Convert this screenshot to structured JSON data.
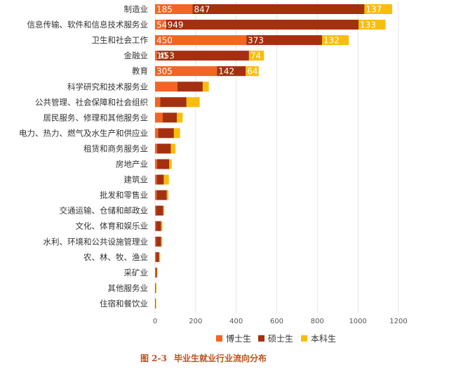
{
  "chart_data": {
    "type": "bar",
    "orientation": "horizontal",
    "stacked": true,
    "categories": [
      "制造业",
      "信息传输、软件和信息技术服务业",
      "卫生和社会工作",
      "金融业",
      "教育",
      "科学研究和技术服务业",
      "公共管理、社会保障和社会组织",
      "居民服务、修理和其他服务业",
      "电力、热力、燃气及水生产和供应业",
      "租赁和商务服务业",
      "房地产业",
      "建筑业",
      "批发和零售业",
      "交通运输、仓储和邮政业",
      "文化、体育和娱乐业",
      "水利、环境和公共设施管理业",
      "农、林、牧、渔业",
      "采矿业",
      "其他服务业",
      "住宿和餐饮业"
    ],
    "series": [
      {
        "name": "博士生",
        "color": "#f26522",
        "values": [
          185,
          54,
          450,
          10,
          305,
          110,
          25,
          38,
          15,
          10,
          10,
          8,
          8,
          5,
          5,
          5,
          5,
          3,
          2,
          1
        ]
      },
      {
        "name": "硕士生",
        "color": "#a5300f",
        "values": [
          847,
          949,
          373,
          453,
          142,
          125,
          130,
          70,
          78,
          68,
          60,
          35,
          50,
          35,
          25,
          25,
          15,
          6,
          2,
          2
        ]
      },
      {
        "name": "本科生",
        "color": "#fbbd0b",
        "values": [
          137,
          133,
          132,
          74,
          64,
          30,
          65,
          28,
          30,
          22,
          12,
          25,
          8,
          5,
          6,
          5,
          5,
          1,
          1,
          1
        ]
      }
    ],
    "data_labels": [
      [
        "185",
        "847",
        "137"
      ],
      [
        "54",
        "949",
        "133"
      ],
      [
        "450",
        "373",
        "132"
      ],
      [
        "10",
        "453",
        "74"
      ],
      [
        "305",
        "142",
        "64"
      ]
    ],
    "xlim": [
      0,
      1200
    ],
    "xticks": [
      0,
      200,
      400,
      600,
      800,
      1000,
      1200
    ],
    "grid": true,
    "legend_position": "bottom"
  },
  "caption": {
    "label": "图 2-3",
    "text": "毕业生就业行业流向分布"
  }
}
